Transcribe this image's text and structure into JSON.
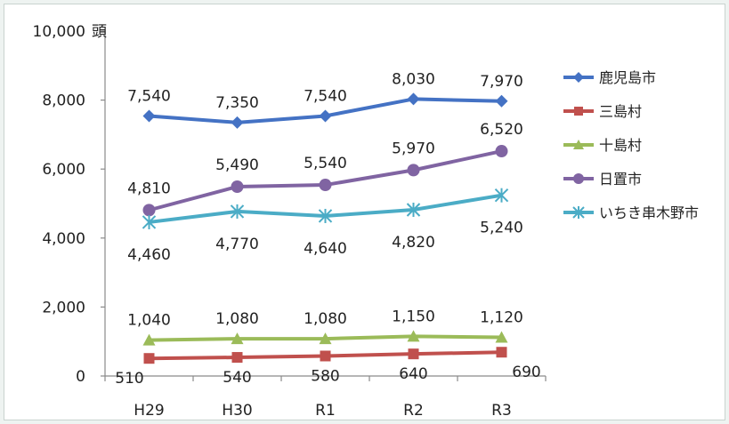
{
  "chart_data": {
    "type": "line",
    "unit": "頭",
    "categories": [
      "H29",
      "H30",
      "R1",
      "R2",
      "R3"
    ],
    "ylim": [
      0,
      10000
    ],
    "yticks": [
      "0",
      "2,000",
      "4,000",
      "6,000",
      "8,000",
      "10,000"
    ],
    "grid": false,
    "legend_position": "right",
    "series": [
      {
        "name": "鹿児島市",
        "values": [
          7540,
          7350,
          7540,
          8030,
          7970
        ],
        "labels": [
          "7,540",
          "7,350",
          "7,540",
          "8,030",
          "7,970"
        ],
        "color": "#4472c4",
        "marker": "diamond"
      },
      {
        "name": "三島村",
        "values": [
          510,
          540,
          580,
          640,
          690
        ],
        "labels": [
          "510",
          "540",
          "580",
          "640",
          "690"
        ],
        "color": "#c0504d",
        "marker": "square"
      },
      {
        "name": "十島村",
        "values": [
          1040,
          1080,
          1080,
          1150,
          1120
        ],
        "labels": [
          "1,040",
          "1,080",
          "1,080",
          "1,150",
          "1,120"
        ],
        "color": "#9bbb59",
        "marker": "triangle"
      },
      {
        "name": "日置市",
        "values": [
          4810,
          5490,
          5540,
          5970,
          6520
        ],
        "labels": [
          "4,810",
          "5,490",
          "5,540",
          "5,970",
          "6,520"
        ],
        "color": "#8064a2",
        "marker": "circle"
      },
      {
        "name": "いちき串木野市",
        "values": [
          4460,
          4770,
          4640,
          4820,
          5240
        ],
        "labels": [
          "4,460",
          "4,770",
          "4,640",
          "4,820",
          "5,240"
        ],
        "color": "#4bacc6",
        "marker": "star"
      }
    ]
  }
}
